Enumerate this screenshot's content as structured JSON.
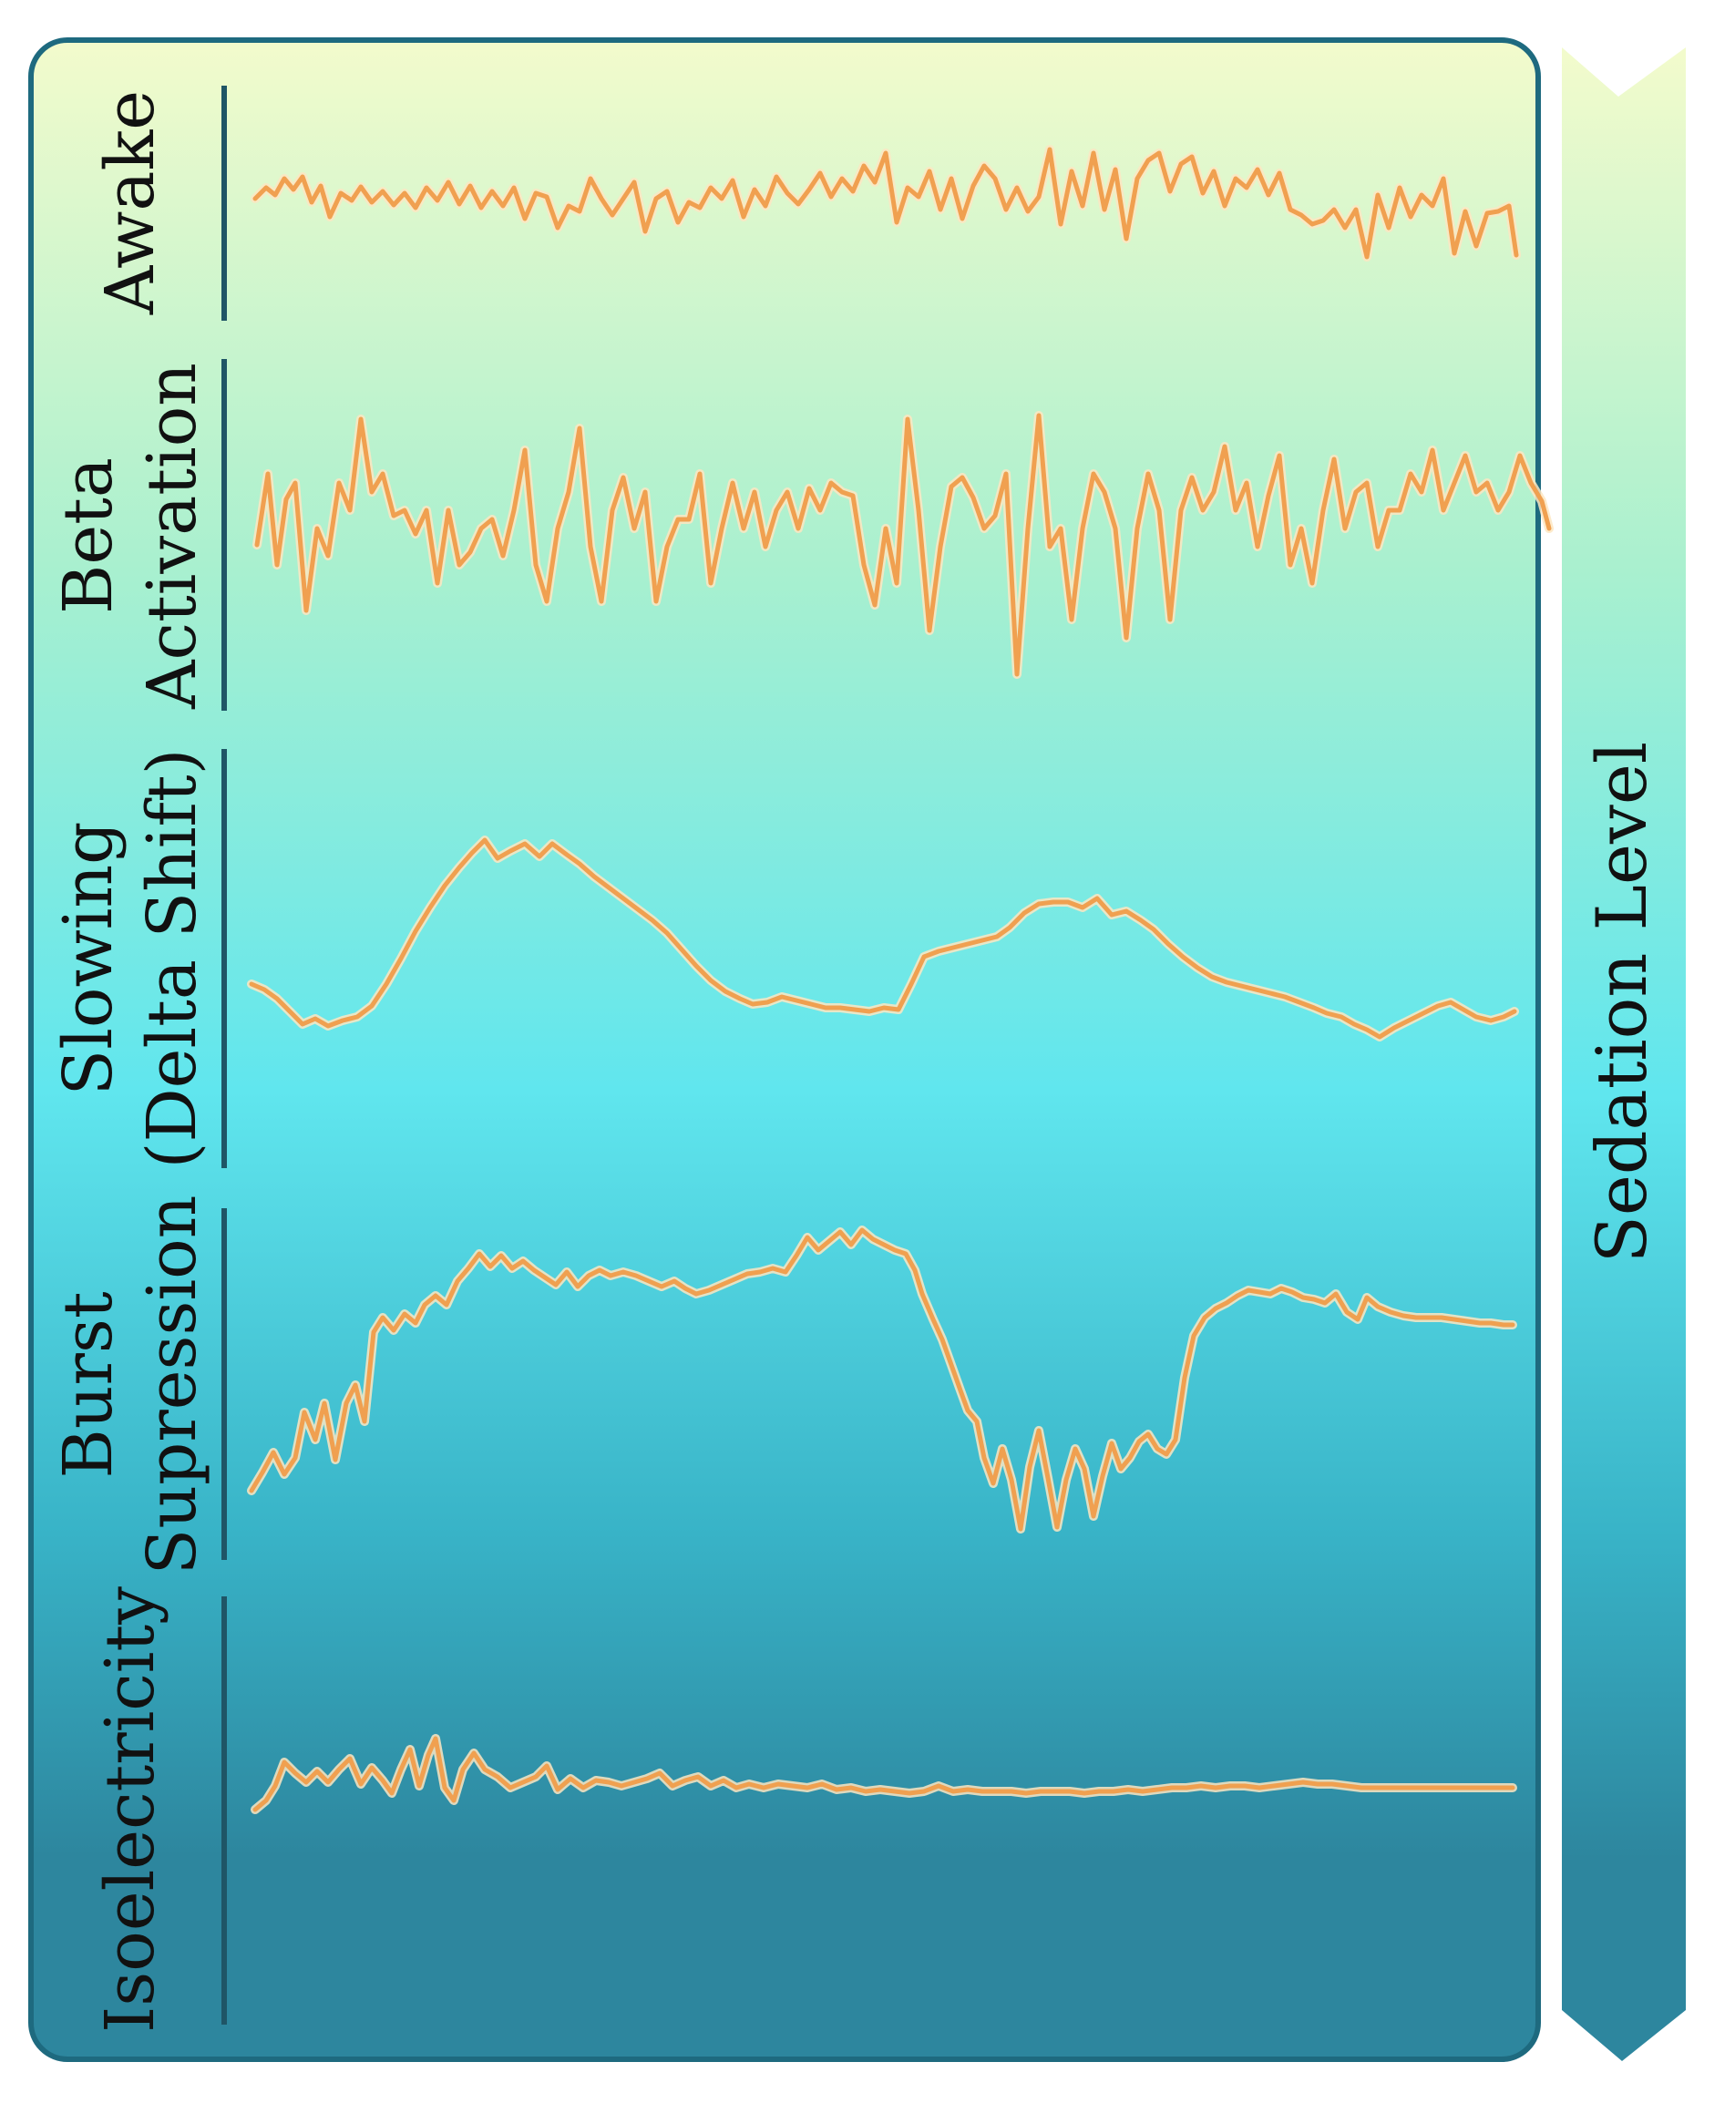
{
  "colors": {
    "gradient_top": "#f3fbcc",
    "gradient_upper": "#a9f0cf",
    "gradient_mid": "#60e6ee",
    "gradient_lower": "#38b3c7",
    "gradient_bottom": "#2d869e",
    "border": "#1e6a7f",
    "separator": "#1f5566",
    "trace": "#f0a050",
    "trace_glow": "#fde6c2"
  },
  "arrow_label": "Sedation Level",
  "states": [
    {
      "id": "awake",
      "lines": [
        "Awake"
      ]
    },
    {
      "id": "beta",
      "lines": [
        "Beta",
        "Activation"
      ]
    },
    {
      "id": "slowing",
      "lines": [
        "Slowing",
        "(Delta Shift)"
      ]
    },
    {
      "id": "burst",
      "lines": [
        "Burst",
        "Supression"
      ]
    },
    {
      "id": "iso",
      "lines": [
        "Isoelectricity"
      ]
    }
  ]
}
